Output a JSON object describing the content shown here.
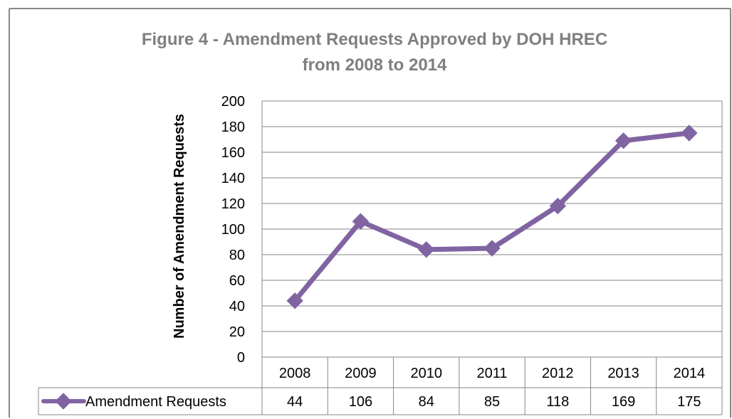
{
  "chart_data": {
    "type": "line",
    "title_lines": [
      "Figure 4 - Amendment Requests Approved by DOH HREC",
      "from 2008 to 2014"
    ],
    "ylabel": "Number of Amendment Requests",
    "xlabel": "",
    "categories": [
      "2008",
      "2009",
      "2010",
      "2011",
      "2012",
      "2013",
      "2014"
    ],
    "yticks": [
      0,
      20,
      40,
      60,
      80,
      100,
      120,
      140,
      160,
      180,
      200
    ],
    "ylim": [
      0,
      200
    ],
    "grid": true,
    "legend_position": "data-table-row",
    "series": [
      {
        "name": "Amendment Requests",
        "values": [
          44,
          106,
          84,
          85,
          118,
          169,
          175
        ],
        "color": "#8064A2",
        "marker": "diamond"
      }
    ],
    "colors": {
      "title_text": "#7F7F7F",
      "axis_text": "#000000",
      "grid": "#868686",
      "border": "#868686"
    }
  }
}
